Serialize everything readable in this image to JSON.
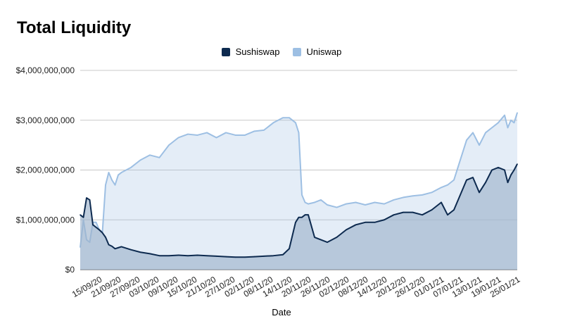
{
  "chart_data": {
    "type": "area",
    "title": "Total Liquidity",
    "xlabel": "Date",
    "ylabel": "",
    "ylim": [
      0,
      4000000000
    ],
    "y_ticks": [
      "$0",
      "$1,000,000,000",
      "$2,000,000,000",
      "$3,000,000,000",
      "$4,000,000,000"
    ],
    "x_tick_labels": [
      "15/09/20",
      "21/09/20",
      "27/09/20",
      "03/10/20",
      "09/10/20",
      "15/10/20",
      "21/10/20",
      "27/10/20",
      "02/11/20",
      "08/11/20",
      "14/11/20",
      "20/11/20",
      "26/11/20",
      "02/12/20",
      "08/12/20",
      "14/12/20",
      "20/12/20",
      "26/12/20",
      "01/01/21",
      "07/01/21",
      "13/01/21",
      "19/01/21",
      "25/01/21"
    ],
    "x": [
      "2020-09-09",
      "2020-09-10",
      "2020-09-11",
      "2020-09-12",
      "2020-09-13",
      "2020-09-14",
      "2020-09-15",
      "2020-09-16",
      "2020-09-17",
      "2020-09-18",
      "2020-09-19",
      "2020-09-20",
      "2020-09-21",
      "2020-09-22",
      "2020-09-25",
      "2020-09-28",
      "2020-10-01",
      "2020-10-04",
      "2020-10-07",
      "2020-10-10",
      "2020-10-13",
      "2020-10-16",
      "2020-10-19",
      "2020-10-22",
      "2020-10-25",
      "2020-10-28",
      "2020-10-31",
      "2020-11-03",
      "2020-11-06",
      "2020-11-09",
      "2020-11-12",
      "2020-11-14",
      "2020-11-16",
      "2020-11-17",
      "2020-11-18",
      "2020-11-19",
      "2020-11-20",
      "2020-11-22",
      "2020-11-24",
      "2020-11-26",
      "2020-11-29",
      "2020-12-02",
      "2020-12-05",
      "2020-12-08",
      "2020-12-11",
      "2020-12-14",
      "2020-12-17",
      "2020-12-20",
      "2020-12-23",
      "2020-12-26",
      "2020-12-29",
      "2021-01-01",
      "2021-01-03",
      "2021-01-05",
      "2021-01-07",
      "2021-01-09",
      "2021-01-11",
      "2021-01-13",
      "2021-01-15",
      "2021-01-17",
      "2021-01-19",
      "2021-01-21",
      "2021-01-22",
      "2021-01-23",
      "2021-01-24",
      "2021-01-25"
    ],
    "series": [
      {
        "name": "Sushiswap",
        "color": "#0d2a4f",
        "values": [
          1100000000,
          1050000000,
          1440000000,
          1400000000,
          900000000,
          850000000,
          800000000,
          740000000,
          650000000,
          500000000,
          470000000,
          420000000,
          440000000,
          460000000,
          400000000,
          350000000,
          320000000,
          280000000,
          280000000,
          290000000,
          280000000,
          290000000,
          280000000,
          270000000,
          260000000,
          250000000,
          250000000,
          260000000,
          270000000,
          280000000,
          300000000,
          420000000,
          950000000,
          1050000000,
          1050000000,
          1100000000,
          1100000000,
          650000000,
          600000000,
          550000000,
          650000000,
          800000000,
          900000000,
          950000000,
          950000000,
          1000000000,
          1100000000,
          1150000000,
          1150000000,
          1100000000,
          1200000000,
          1350000000,
          1100000000,
          1200000000,
          1500000000,
          1800000000,
          1850000000,
          1550000000,
          1750000000,
          2000000000,
          2050000000,
          2000000000,
          1750000000,
          1900000000,
          2000000000,
          2120000000
        ]
      },
      {
        "name": "Uniswap",
        "color": "#9dbfe3",
        "values": [
          450000000,
          1000000000,
          600000000,
          550000000,
          950000000,
          950000000,
          800000000,
          750000000,
          1700000000,
          1950000000,
          1800000000,
          1700000000,
          1900000000,
          1950000000,
          2050000000,
          2200000000,
          2300000000,
          2250000000,
          2500000000,
          2650000000,
          2720000000,
          2700000000,
          2750000000,
          2650000000,
          2750000000,
          2700000000,
          2700000000,
          2780000000,
          2800000000,
          2950000000,
          3050000000,
          3050000000,
          2950000000,
          2750000000,
          1500000000,
          1350000000,
          1320000000,
          1350000000,
          1400000000,
          1300000000,
          1250000000,
          1320000000,
          1350000000,
          1300000000,
          1350000000,
          1320000000,
          1400000000,
          1450000000,
          1480000000,
          1500000000,
          1550000000,
          1650000000,
          1700000000,
          1800000000,
          2200000000,
          2600000000,
          2750000000,
          2500000000,
          2750000000,
          2850000000,
          2950000000,
          3100000000,
          2850000000,
          3000000000,
          2950000000,
          3150000000
        ]
      }
    ],
    "grid": true,
    "legend_position": "top-center"
  }
}
